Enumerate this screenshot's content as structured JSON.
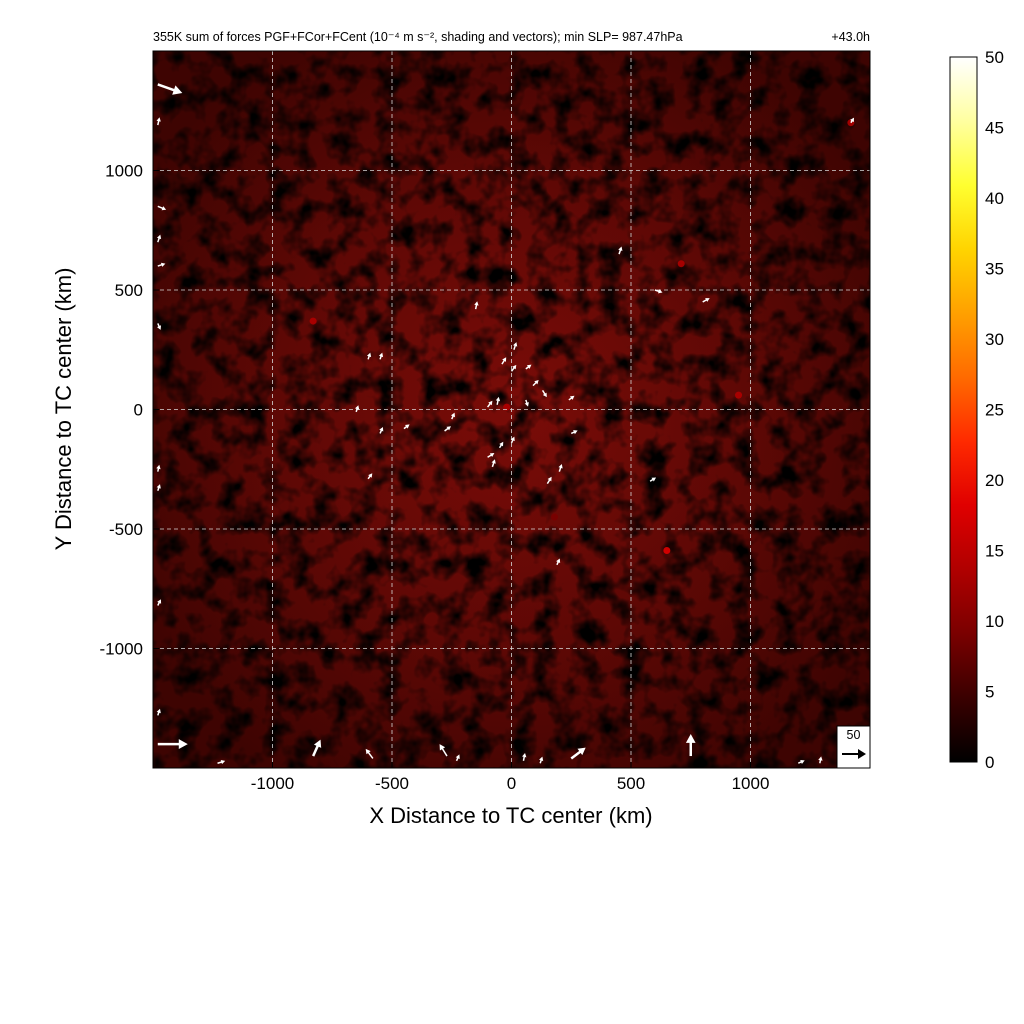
{
  "chart_data": {
    "type": "heatmap",
    "title": "355K sum of forces PGF+FCor+FCent (10⁻⁴ m s⁻², shading and vectors); min SLP= 987.47hPa",
    "time_label": "+43.0h",
    "xlabel": "X Distance to TC center (km)",
    "ylabel": "Y Distance to TC center (km)",
    "xlim": [
      -1500,
      1500
    ],
    "ylim": [
      -1500,
      1500
    ],
    "x_ticks": [
      -1000,
      -500,
      0,
      500,
      1000
    ],
    "y_ticks": [
      -1000,
      -500,
      0,
      500,
      1000
    ],
    "x_tick_labels": [
      "-1000",
      "-500",
      "0",
      "500",
      "1000"
    ],
    "y_tick_labels": [
      "-1000",
      "-500",
      "0",
      "500",
      "1000"
    ],
    "grid": true,
    "colorbar": {
      "min": 0,
      "max": 50,
      "ticks": [
        0,
        5,
        10,
        15,
        20,
        25,
        30,
        35,
        40,
        45,
        50
      ],
      "tick_labels": [
        "0",
        "5",
        "10",
        "15",
        "20",
        "25",
        "30",
        "35",
        "40",
        "45",
        "50"
      ],
      "colormap": [
        "#000000",
        "#3a0000",
        "#7a0000",
        "#b00000",
        "#e00000",
        "#ff2a00",
        "#ff6a00",
        "#ffa000",
        "#ffd400",
        "#ffff30",
        "#ffffa0",
        "#ffffff"
      ]
    },
    "reference_vector": {
      "magnitude": 50,
      "label": "50"
    },
    "hotspots": [
      {
        "x": 650,
        "y": -590,
        "value": 18
      },
      {
        "x": 950,
        "y": 60,
        "value": 12
      },
      {
        "x": -830,
        "y": 370,
        "value": 14
      },
      {
        "x": 710,
        "y": 610,
        "value": 12
      },
      {
        "x": 1420,
        "y": 1200,
        "value": 14
      },
      {
        "x": -20,
        "y": 10,
        "value": 12
      },
      {
        "x": 180,
        "y": -450,
        "value": 11
      }
    ],
    "vectors": [
      {
        "x": -1480,
        "y": 1360,
        "u": 1,
        "v": -0.35,
        "size": 26
      },
      {
        "x": -1480,
        "y": -1400,
        "u": 1,
        "v": 0,
        "size": 30
      },
      {
        "x": -830,
        "y": -1450,
        "u": 0.45,
        "v": 1,
        "size": 18
      },
      {
        "x": 750,
        "y": -1450,
        "u": 0,
        "v": 1,
        "size": 22
      },
      {
        "x": 250,
        "y": -1460,
        "u": 0.8,
        "v": 0.6,
        "size": 18
      },
      {
        "x": -270,
        "y": -1450,
        "u": -0.5,
        "v": 0.8,
        "size": 14
      },
      {
        "x": -580,
        "y": -1460,
        "u": -0.6,
        "v": 0.8,
        "size": 12
      },
      {
        "x": -1480,
        "y": 1190,
        "u": 0.2,
        "v": 0.9,
        "size": 8
      },
      {
        "x": -1480,
        "y": 850,
        "u": 1,
        "v": -0.4,
        "size": 9
      },
      {
        "x": -1480,
        "y": 700,
        "u": 0.3,
        "v": 0.9,
        "size": 8
      },
      {
        "x": -1480,
        "y": 600,
        "u": 0.9,
        "v": 0.3,
        "size": 8
      },
      {
        "x": -1480,
        "y": 360,
        "u": 0.4,
        "v": -0.9,
        "size": 7
      },
      {
        "x": -1480,
        "y": -260,
        "u": 0.2,
        "v": 0.9,
        "size": 7
      },
      {
        "x": -1480,
        "y": -340,
        "u": 0.3,
        "v": 0.9,
        "size": 7
      },
      {
        "x": -1480,
        "y": -820,
        "u": 0.4,
        "v": 0.8,
        "size": 7
      },
      {
        "x": -1480,
        "y": -1280,
        "u": 0.3,
        "v": 0.9,
        "size": 7
      },
      {
        "x": 450,
        "y": 650,
        "u": 0.3,
        "v": 0.9,
        "size": 8
      },
      {
        "x": 600,
        "y": 500,
        "u": 0.9,
        "v": -0.3,
        "size": 8
      },
      {
        "x": 800,
        "y": 450,
        "u": 0.9,
        "v": 0.5,
        "size": 8
      },
      {
        "x": -150,
        "y": 420,
        "u": 0.2,
        "v": 1,
        "size": 8
      },
      {
        "x": -600,
        "y": 210,
        "u": 0.3,
        "v": 0.9,
        "size": 7
      },
      {
        "x": -550,
        "y": 210,
        "u": 0.3,
        "v": 0.9,
        "size": 7
      },
      {
        "x": -650,
        "y": -10,
        "u": 0.3,
        "v": 0.9,
        "size": 7
      },
      {
        "x": -550,
        "y": -100,
        "u": 0.4,
        "v": 0.9,
        "size": 7
      },
      {
        "x": -450,
        "y": -80,
        "u": 0.8,
        "v": 0.6,
        "size": 7
      },
      {
        "x": -280,
        "y": -90,
        "u": 0.8,
        "v": 0.6,
        "size": 8
      },
      {
        "x": -250,
        "y": -40,
        "u": 0.4,
        "v": 0.9,
        "size": 7
      },
      {
        "x": -100,
        "y": 10,
        "u": 0.6,
        "v": 0.8,
        "size": 8
      },
      {
        "x": -60,
        "y": 20,
        "u": 0.2,
        "v": 1,
        "size": 8
      },
      {
        "x": -40,
        "y": 190,
        "u": 0.5,
        "v": 0.8,
        "size": 8
      },
      {
        "x": 10,
        "y": 250,
        "u": 0.3,
        "v": 0.9,
        "size": 8
      },
      {
        "x": 0,
        "y": 160,
        "u": 0.6,
        "v": 0.8,
        "size": 8
      },
      {
        "x": 60,
        "y": 170,
        "u": 0.8,
        "v": 0.6,
        "size": 7
      },
      {
        "x": 90,
        "y": 100,
        "u": 0.7,
        "v": 0.7,
        "size": 8
      },
      {
        "x": 130,
        "y": 80,
        "u": 0.5,
        "v": -0.8,
        "size": 8
      },
      {
        "x": 60,
        "y": 40,
        "u": 0.3,
        "v": -0.9,
        "size": 7
      },
      {
        "x": 240,
        "y": 40,
        "u": 0.8,
        "v": 0.6,
        "size": 7
      },
      {
        "x": 250,
        "y": -100,
        "u": 0.9,
        "v": 0.4,
        "size": 7
      },
      {
        "x": 200,
        "y": -260,
        "u": 0.3,
        "v": 0.9,
        "size": 8
      },
      {
        "x": 150,
        "y": -310,
        "u": 0.5,
        "v": 0.8,
        "size": 8
      },
      {
        "x": -100,
        "y": -200,
        "u": 0.8,
        "v": 0.5,
        "size": 8
      },
      {
        "x": -80,
        "y": -240,
        "u": 0.3,
        "v": 0.9,
        "size": 8
      },
      {
        "x": -50,
        "y": -160,
        "u": 0.5,
        "v": 0.8,
        "size": 7
      },
      {
        "x": 0,
        "y": -140,
        "u": 0.4,
        "v": 0.9,
        "size": 7
      },
      {
        "x": 580,
        "y": -300,
        "u": 0.8,
        "v": 0.5,
        "size": 7
      },
      {
        "x": 190,
        "y": -650,
        "u": 0.4,
        "v": 0.9,
        "size": 7
      },
      {
        "x": -600,
        "y": -290,
        "u": 0.6,
        "v": 0.8,
        "size": 7
      },
      {
        "x": 50,
        "y": -1470,
        "u": 0.2,
        "v": 1,
        "size": 8
      },
      {
        "x": 120,
        "y": -1480,
        "u": 0.3,
        "v": 0.9,
        "size": 7
      },
      {
        "x": -230,
        "y": -1470,
        "u": 0.4,
        "v": 0.9,
        "size": 7
      },
      {
        "x": -1230,
        "y": -1480,
        "u": 1,
        "v": 0.3,
        "size": 8
      },
      {
        "x": 1200,
        "y": -1480,
        "u": 0.9,
        "v": 0.4,
        "size": 7
      },
      {
        "x": 1290,
        "y": -1480,
        "u": 0.2,
        "v": 1,
        "size": 7
      },
      {
        "x": 1420,
        "y": 1200,
        "u": 0.5,
        "v": 0.8,
        "size": 6
      }
    ]
  }
}
